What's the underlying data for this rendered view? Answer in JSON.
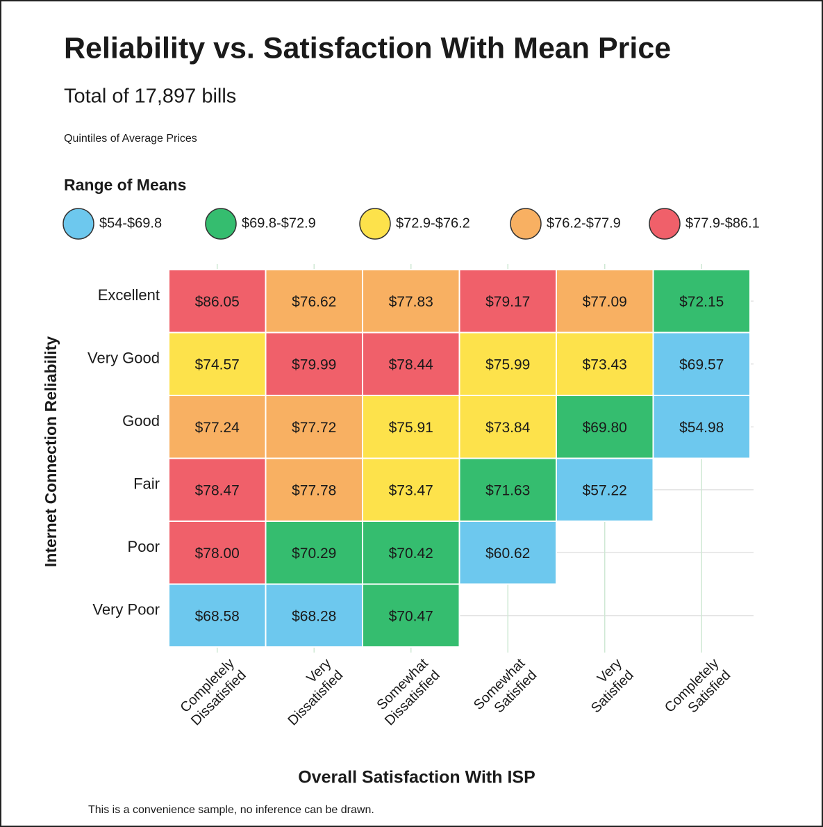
{
  "chart_data": {
    "type": "heatmap",
    "title": "Reliability vs. Satisfaction With Mean Price",
    "subtitle": "Total of 17,897 bills",
    "note": "Quintiles of Average Prices",
    "legend": {
      "title": "Range of Means",
      "items": [
        {
          "label": "$54-$69.8",
          "bounds": [
            54,
            69.8
          ],
          "color": "#6dc8ee"
        },
        {
          "label": "$69.8-$72.9",
          "bounds": [
            69.8,
            72.9
          ],
          "color": "#35bd6f"
        },
        {
          "label": "$72.9-$76.2",
          "bounds": [
            72.9,
            76.2
          ],
          "color": "#fde24b"
        },
        {
          "label": "$76.2-$77.9",
          "bounds": [
            76.2,
            77.9
          ],
          "color": "#f8b062"
        },
        {
          "label": "$77.9-$86.1",
          "bounds": [
            77.9,
            86.1
          ],
          "color": "#f0606a"
        }
      ]
    },
    "x_label": "Overall Satisfaction With ISP",
    "y_label": "Internet Connection Reliability",
    "x_categories": [
      [
        "Completely",
        "Dissatisfied"
      ],
      [
        "Very",
        "Dissatisfied"
      ],
      [
        "Somewhat",
        "Dissatisfied"
      ],
      [
        "Somewhat",
        "Satisfied"
      ],
      [
        "Very",
        "Satisfied"
      ],
      [
        "Completely",
        "Satisfied"
      ]
    ],
    "y_categories": [
      "Excellent",
      "Very Good",
      "Good",
      "Fair",
      "Poor",
      "Very Poor"
    ],
    "values": [
      [
        86.05,
        76.62,
        77.83,
        79.17,
        77.09,
        72.15
      ],
      [
        74.57,
        79.99,
        78.44,
        75.99,
        73.43,
        69.57
      ],
      [
        77.24,
        77.72,
        75.91,
        73.84,
        69.8,
        54.98
      ],
      [
        78.47,
        77.78,
        73.47,
        71.63,
        57.22,
        null
      ],
      [
        78.0,
        70.29,
        70.42,
        60.62,
        null,
        null
      ],
      [
        68.58,
        68.28,
        70.47,
        null,
        null,
        null
      ]
    ],
    "value_labels": [
      [
        "$86.05",
        "$76.62",
        "$77.83",
        "$79.17",
        "$77.09",
        "$72.15"
      ],
      [
        "$74.57",
        "$79.99",
        "$78.44",
        "$75.99",
        "$73.43",
        "$69.57"
      ],
      [
        "$77.24",
        "$77.72",
        "$75.91",
        "$73.84",
        "$69.80",
        "$54.98"
      ],
      [
        "$78.47",
        "$77.78",
        "$73.47",
        "$71.63",
        "$57.22",
        null
      ],
      [
        "$78.00",
        "$70.29",
        "$70.42",
        "$60.62",
        null,
        null
      ],
      [
        "$68.58",
        "$68.28",
        "$70.47",
        null,
        null,
        null
      ]
    ],
    "footnote": "This is a convenience sample, no inference can be drawn."
  }
}
